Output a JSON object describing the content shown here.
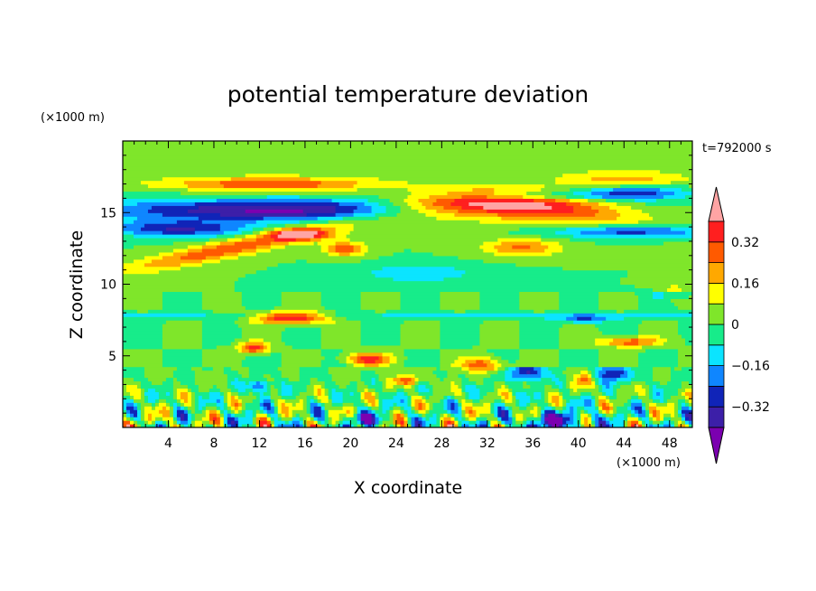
{
  "chart_data": {
    "type": "heatmap",
    "title": "potential temperature deviation",
    "xlabel": "X coordinate",
    "ylabel": "Z coordinate",
    "x_unit": "(×1000 m)",
    "y_unit": "(×1000 m)",
    "time_label": "t=792000 s",
    "xlim": [
      0,
      50
    ],
    "ylim": [
      0,
      20
    ],
    "x_ticks": [
      4,
      8,
      12,
      16,
      20,
      24,
      28,
      32,
      36,
      40,
      44,
      48
    ],
    "y_ticks": [
      5,
      10,
      15
    ],
    "colorbar": {
      "levels": [
        -0.4,
        -0.32,
        -0.24,
        -0.16,
        -0.08,
        0,
        0.08,
        0.16,
        0.24,
        0.32,
        0.4
      ],
      "labels": [
        "0.32",
        "0.16",
        "0",
        "−0.16",
        "−0.32"
      ],
      "label_values": [
        0.32,
        0.16,
        0,
        -0.16,
        -0.32
      ],
      "colors": [
        "#7b00b0",
        "#3c1fa8",
        "#1024b8",
        "#0f86ff",
        "#0be4ff",
        "#17ec8a",
        "#7fe62a",
        "#ffff00",
        "#ffa800",
        "#ff5a00",
        "#ff1f1f",
        "#ffa4a4"
      ]
    },
    "features": [
      {
        "name": "upper-warm-band",
        "x": [
          4,
          21
        ],
        "z": [
          16.5,
          17.6
        ],
        "value": 0.3
      },
      {
        "name": "upper-cold-band",
        "x": [
          0,
          28
        ],
        "z": [
          13.8,
          16.0
        ],
        "value": -0.35
      },
      {
        "name": "warm-lens",
        "x": [
          24,
          45
        ],
        "z": [
          13.2,
          16.0
        ],
        "value": 0.45
      },
      {
        "name": "warm-streak",
        "x": [
          1,
          20
        ],
        "z": [
          10.8,
          13.6
        ],
        "value": 0.28
      },
      {
        "name": "cold-cap",
        "x": [
          38,
          50
        ],
        "z": [
          15.6,
          16.8
        ],
        "value": -0.3
      },
      {
        "name": "lower-mixed-layer",
        "x": [
          0,
          50
        ],
        "z": [
          0,
          3.8
        ],
        "value": 0
      }
    ]
  }
}
